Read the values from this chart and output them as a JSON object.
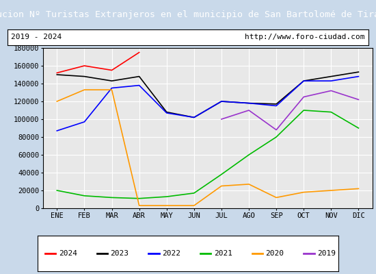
{
  "title": "Evolucion Nº Turistas Extranjeros en el municipio de San Bartolomé de Tirajana",
  "subtitle_left": "2019 - 2024",
  "subtitle_right": "http://www.foro-ciudad.com",
  "xlabel_months": [
    "ENE",
    "FEB",
    "MAR",
    "ABR",
    "MAY",
    "JUN",
    "JUL",
    "AGO",
    "SEP",
    "OCT",
    "NOV",
    "DIC"
  ],
  "ylim": [
    0,
    180000
  ],
  "yticks": [
    0,
    20000,
    40000,
    60000,
    80000,
    100000,
    120000,
    140000,
    160000,
    180000
  ],
  "series": {
    "2024": {
      "color": "#ff0000",
      "data": [
        152000,
        160000,
        155000,
        175000,
        null,
        null,
        null,
        null,
        null,
        null,
        null,
        null
      ]
    },
    "2023": {
      "color": "#000000",
      "data": [
        150000,
        148000,
        143000,
        148000,
        108000,
        102000,
        120000,
        118000,
        117000,
        143000,
        148000,
        153000
      ]
    },
    "2022": {
      "color": "#0000ff",
      "data": [
        87000,
        97000,
        135000,
        138000,
        107000,
        102000,
        120000,
        118000,
        115000,
        143000,
        143000,
        148000
      ]
    },
    "2021": {
      "color": "#00bb00",
      "data": [
        20000,
        14000,
        12000,
        11000,
        13000,
        17000,
        38000,
        60000,
        80000,
        110000,
        108000,
        90000
      ]
    },
    "2020": {
      "color": "#ff9900",
      "data": [
        120000,
        133000,
        133000,
        3000,
        3000,
        3000,
        25000,
        27000,
        12000,
        18000,
        20000,
        22000
      ]
    },
    "2019": {
      "color": "#9933cc",
      "data": [
        null,
        null,
        null,
        null,
        null,
        null,
        100000,
        110000,
        88000,
        125000,
        132000,
        122000
      ]
    }
  },
  "title_bg": "#4472c4",
  "title_color": "#ffffff",
  "subtitle_bg": "#ffffff",
  "subtitle_color": "#000000",
  "plot_bg": "#e8e8e8",
  "outer_bg": "#c9d9ea",
  "title_fontsize": 9.5,
  "subtitle_fontsize": 8,
  "tick_fontsize": 7.5,
  "legend_fontsize": 8
}
